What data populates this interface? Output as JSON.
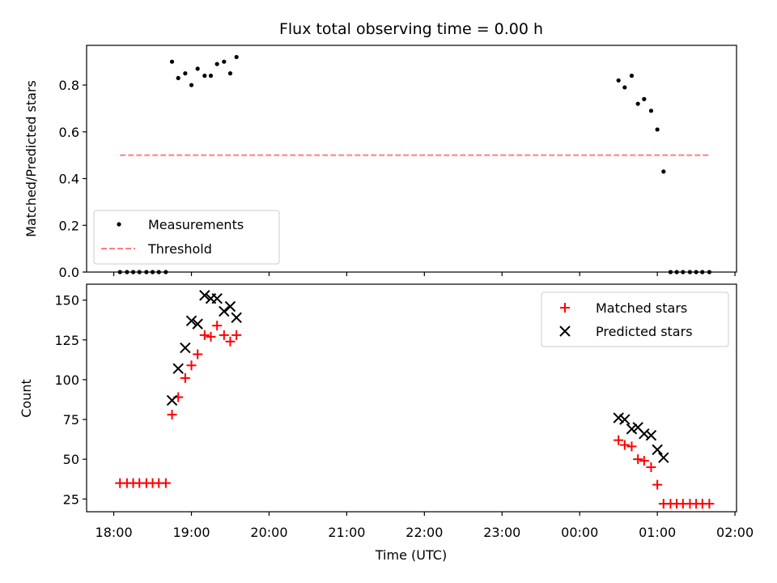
{
  "chart_data": {
    "title": "Flux total observing time = 0.00 h",
    "xlabel": "Time (UTC)",
    "x_ticks": [
      "18:00",
      "19:00",
      "20:00",
      "21:00",
      "22:00",
      "23:00",
      "00:00",
      "01:00",
      "02:00"
    ],
    "xlim_hours": [
      17.65,
      26.02
    ],
    "panels": [
      {
        "type": "scatter",
        "ylabel": "Matched/Predicted stars",
        "ylim": [
          0,
          0.97
        ],
        "yticks": [
          "0.0",
          "0.2",
          "0.4",
          "0.6",
          "0.8"
        ],
        "ytick_values": [
          0,
          0.2,
          0.4,
          0.6,
          0.8
        ],
        "legend_position": "lower-left",
        "series": [
          {
            "name": "Measurements",
            "marker": "dot",
            "color": "#000000",
            "points": [
              [
                18.08,
                0.0
              ],
              [
                18.17,
                0.0
              ],
              [
                18.25,
                0.0
              ],
              [
                18.33,
                0.0
              ],
              [
                18.42,
                0.0
              ],
              [
                18.5,
                0.0
              ],
              [
                18.58,
                0.0
              ],
              [
                18.67,
                0.0
              ],
              [
                18.75,
                0.9
              ],
              [
                18.83,
                0.83
              ],
              [
                18.92,
                0.85
              ],
              [
                19.0,
                0.8
              ],
              [
                19.08,
                0.87
              ],
              [
                19.17,
                0.84
              ],
              [
                19.25,
                0.84
              ],
              [
                19.33,
                0.89
              ],
              [
                19.42,
                0.9
              ],
              [
                19.5,
                0.85
              ],
              [
                19.58,
                0.92
              ],
              [
                24.5,
                0.82
              ],
              [
                24.58,
                0.79
              ],
              [
                24.67,
                0.84
              ],
              [
                24.75,
                0.72
              ],
              [
                24.83,
                0.74
              ],
              [
                24.92,
                0.69
              ],
              [
                25.0,
                0.61
              ],
              [
                25.08,
                0.43
              ],
              [
                25.17,
                0.0
              ],
              [
                25.25,
                0.0
              ],
              [
                25.33,
                0.0
              ],
              [
                25.42,
                0.0
              ],
              [
                25.5,
                0.0
              ],
              [
                25.58,
                0.0
              ],
              [
                25.67,
                0.0
              ]
            ]
          },
          {
            "name": "Threshold",
            "type": "line",
            "style": "dashed",
            "color": "#ff7f7f",
            "points": [
              [
                18.08,
                0.5
              ],
              [
                25.67,
                0.5
              ]
            ]
          }
        ]
      },
      {
        "type": "scatter",
        "ylabel": "Count",
        "ylim": [
          17,
          160
        ],
        "yticks": [
          "25",
          "50",
          "75",
          "100",
          "125",
          "150"
        ],
        "ytick_values": [
          25,
          50,
          75,
          100,
          125,
          150
        ],
        "legend_position": "top-right",
        "series": [
          {
            "name": "Matched stars",
            "marker": "plus",
            "color": "#ff0000",
            "points": [
              [
                18.08,
                35
              ],
              [
                18.17,
                35
              ],
              [
                18.25,
                35
              ],
              [
                18.33,
                35
              ],
              [
                18.42,
                35
              ],
              [
                18.5,
                35
              ],
              [
                18.58,
                35
              ],
              [
                18.67,
                35
              ],
              [
                18.75,
                78
              ],
              [
                18.83,
                89
              ],
              [
                18.92,
                101
              ],
              [
                19.0,
                109
              ],
              [
                19.08,
                116
              ],
              [
                19.17,
                128
              ],
              [
                19.25,
                127
              ],
              [
                19.33,
                134
              ],
              [
                19.42,
                128
              ],
              [
                19.5,
                124
              ],
              [
                19.58,
                128
              ],
              [
                24.5,
                62
              ],
              [
                24.58,
                59
              ],
              [
                24.67,
                58
              ],
              [
                24.75,
                50
              ],
              [
                24.83,
                49
              ],
              [
                24.92,
                45
              ],
              [
                25.0,
                34
              ],
              [
                25.08,
                22
              ],
              [
                25.17,
                22
              ],
              [
                25.25,
                22
              ],
              [
                25.33,
                22
              ],
              [
                25.42,
                22
              ],
              [
                25.5,
                22
              ],
              [
                25.58,
                22
              ],
              [
                25.67,
                22
              ]
            ]
          },
          {
            "name": "Predicted stars",
            "marker": "x",
            "color": "#000000",
            "points": [
              [
                18.75,
                87
              ],
              [
                18.83,
                107
              ],
              [
                18.92,
                120
              ],
              [
                19.0,
                137
              ],
              [
                19.08,
                135
              ],
              [
                19.17,
                153
              ],
              [
                19.25,
                151
              ],
              [
                19.33,
                151
              ],
              [
                19.42,
                143
              ],
              [
                19.5,
                146
              ],
              [
                19.58,
                139
              ],
              [
                24.5,
                76
              ],
              [
                24.58,
                75
              ],
              [
                24.67,
                69
              ],
              [
                24.75,
                70
              ],
              [
                24.83,
                66
              ],
              [
                24.92,
                65
              ],
              [
                25.0,
                56
              ],
              [
                25.08,
                51
              ]
            ]
          }
        ]
      }
    ]
  }
}
